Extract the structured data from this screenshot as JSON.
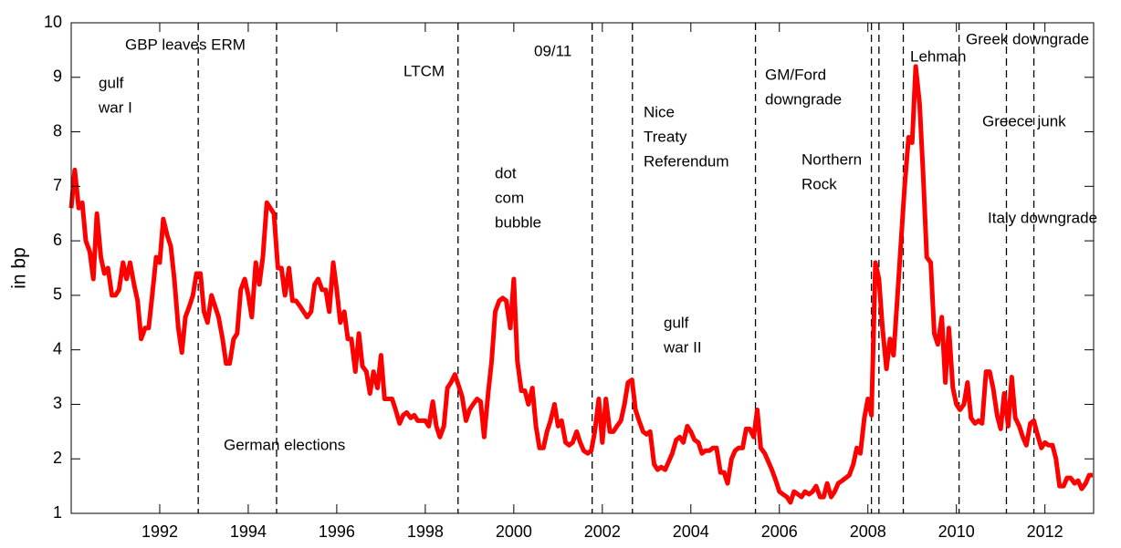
{
  "chart_data": {
    "type": "line",
    "ylabel": "in bp",
    "xlim": [
      1990,
      2013.1
    ],
    "ylim": [
      1,
      10
    ],
    "xticks": [
      1992,
      1994,
      1996,
      1998,
      2000,
      2002,
      2004,
      2006,
      2008,
      2010,
      2012
    ],
    "yticks": [
      1,
      2,
      3,
      4,
      5,
      6,
      7,
      8,
      9,
      10
    ],
    "color": "#ff0000",
    "event_lines": [
      1992.87,
      1994.64,
      1998.74,
      2001.77,
      2002.68,
      2005.46,
      2008.08,
      2008.25,
      2008.8,
      2010.06,
      2011.13,
      2011.75
    ],
    "annotations": [
      [
        "gulf",
        "war I"
      ],
      [
        "GBP leaves ERM"
      ],
      [
        "German elections"
      ],
      [
        "LTCM"
      ],
      [
        "09/11"
      ],
      [
        "dot",
        "com",
        "bubble"
      ],
      [
        "Nice",
        "Treaty",
        "Referendum"
      ],
      [
        "gulf",
        "war II"
      ],
      [
        "GM/Ford",
        "downgrade"
      ],
      [
        "Northern",
        "Rock"
      ],
      [
        "Lehman"
      ],
      [
        "Greek downgrade"
      ],
      [
        "Greece junk"
      ],
      [
        "Italy downgrade"
      ]
    ],
    "x": [
      1990,
      1990.08,
      1990.17,
      1990.25,
      1990.33,
      1990.42,
      1990.5,
      1990.58,
      1990.67,
      1990.75,
      1990.83,
      1990.92,
      1991,
      1991.08,
      1991.17,
      1991.25,
      1991.33,
      1991.42,
      1991.5,
      1991.58,
      1991.67,
      1991.75,
      1991.83,
      1991.92,
      1992,
      1992.08,
      1992.17,
      1992.25,
      1992.33,
      1992.42,
      1992.5,
      1992.58,
      1992.67,
      1992.75,
      1992.83,
      1992.92,
      1993,
      1993.08,
      1993.17,
      1993.25,
      1993.33,
      1993.42,
      1993.5,
      1993.58,
      1993.67,
      1993.75,
      1993.83,
      1993.92,
      1994,
      1994.08,
      1994.17,
      1994.25,
      1994.33,
      1994.42,
      1994.5,
      1994.58,
      1994.67,
      1994.75,
      1994.83,
      1994.92,
      1995,
      1995.08,
      1995.17,
      1995.25,
      1995.33,
      1995.42,
      1995.5,
      1995.58,
      1995.67,
      1995.75,
      1995.83,
      1995.92,
      1996,
      1996.08,
      1996.17,
      1996.25,
      1996.33,
      1996.42,
      1996.5,
      1996.58,
      1996.67,
      1996.75,
      1996.83,
      1996.92,
      1997,
      1997.08,
      1997.17,
      1997.25,
      1997.33,
      1997.42,
      1997.5,
      1997.58,
      1997.67,
      1997.75,
      1997.83,
      1997.92,
      1998,
      1998.08,
      1998.17,
      1998.25,
      1998.33,
      1998.42,
      1998.5,
      1998.58,
      1998.67,
      1998.75,
      1998.83,
      1998.92,
      1999,
      1999.08,
      1999.17,
      1999.25,
      1999.33,
      1999.42,
      1999.5,
      1999.58,
      1999.67,
      1999.75,
      1999.83,
      1999.92,
      2000,
      2000.08,
      2000.17,
      2000.25,
      2000.33,
      2000.42,
      2000.5,
      2000.58,
      2000.67,
      2000.75,
      2000.83,
      2000.92,
      2001,
      2001.08,
      2001.17,
      2001.25,
      2001.33,
      2001.42,
      2001.5,
      2001.58,
      2001.67,
      2001.75,
      2001.83,
      2001.92,
      2002,
      2002.08,
      2002.17,
      2002.25,
      2002.33,
      2002.42,
      2002.5,
      2002.58,
      2002.67,
      2002.75,
      2002.83,
      2002.92,
      2003,
      2003.08,
      2003.17,
      2003.25,
      2003.33,
      2003.42,
      2003.5,
      2003.58,
      2003.67,
      2003.75,
      2003.83,
      2003.92,
      2004,
      2004.08,
      2004.17,
      2004.25,
      2004.33,
      2004.42,
      2004.5,
      2004.58,
      2004.67,
      2004.75,
      2004.83,
      2004.92,
      2005,
      2005.08,
      2005.17,
      2005.25,
      2005.33,
      2005.42,
      2005.5,
      2005.58,
      2005.67,
      2005.75,
      2005.83,
      2005.92,
      2006,
      2006.08,
      2006.17,
      2006.25,
      2006.33,
      2006.42,
      2006.5,
      2006.58,
      2006.67,
      2006.75,
      2006.83,
      2006.92,
      2007,
      2007.08,
      2007.17,
      2007.25,
      2007.33,
      2007.42,
      2007.5,
      2007.58,
      2007.67,
      2007.75,
      2007.83,
      2007.92,
      2008,
      2008.08,
      2008.17,
      2008.25,
      2008.33,
      2008.42,
      2008.5,
      2008.58,
      2008.67,
      2008.75,
      2008.83,
      2008.92,
      2009,
      2009.08,
      2009.17,
      2009.25,
      2009.33,
      2009.42,
      2009.5,
      2009.58,
      2009.67,
      2009.75,
      2009.83,
      2009.92,
      2010,
      2010.08,
      2010.17,
      2010.25,
      2010.33,
      2010.42,
      2010.5,
      2010.58,
      2010.67,
      2010.75,
      2010.83,
      2010.92,
      2011,
      2011.08,
      2011.17,
      2011.25,
      2011.33,
      2011.42,
      2011.5,
      2011.58,
      2011.67,
      2011.75,
      2011.83,
      2011.92,
      2012,
      2012.08,
      2012.17,
      2012.25,
      2012.33,
      2012.42,
      2012.5,
      2012.58,
      2012.67,
      2012.75,
      2012.83,
      2012.92,
      2013,
      2013.08
    ],
    "values": [
      6.6,
      7.3,
      6.6,
      6.7,
      6.0,
      5.8,
      5.3,
      6.5,
      5.7,
      5.4,
      5.5,
      5.0,
      5.0,
      5.1,
      5.6,
      5.3,
      5.6,
      5.2,
      4.9,
      4.2,
      4.4,
      4.4,
      5.0,
      5.7,
      5.6,
      6.4,
      6.1,
      5.9,
      5.3,
      4.4,
      3.95,
      4.6,
      4.8,
      5.0,
      5.4,
      5.4,
      4.7,
      4.5,
      5.0,
      4.8,
      4.6,
      4.2,
      3.75,
      3.75,
      4.2,
      4.3,
      5.1,
      5.3,
      5.0,
      4.6,
      5.6,
      5.2,
      5.7,
      6.7,
      6.6,
      6.5,
      5.5,
      5.5,
      5.0,
      5.5,
      4.9,
      4.9,
      4.8,
      4.7,
      4.6,
      4.7,
      5.2,
      5.3,
      5.1,
      5.1,
      4.7,
      5.6,
      5.1,
      4.5,
      4.7,
      4.2,
      4.2,
      3.6,
      4.3,
      3.7,
      3.6,
      3.2,
      3.6,
      3.3,
      3.9,
      3.1,
      3.1,
      3.1,
      2.9,
      2.65,
      2.8,
      2.85,
      2.75,
      2.8,
      2.7,
      2.7,
      2.7,
      2.6,
      3.05,
      2.6,
      2.4,
      2.6,
      3.3,
      3.4,
      3.55,
      3.35,
      3.15,
      2.7,
      2.9,
      3.0,
      3.1,
      3.05,
      2.4,
      3.2,
      3.8,
      4.7,
      4.9,
      4.95,
      4.9,
      4.4,
      5.3,
      3.8,
      3.25,
      3.25,
      3.0,
      3.3,
      2.6,
      2.2,
      2.2,
      2.5,
      2.7,
      3.0,
      2.6,
      2.7,
      2.3,
      2.25,
      2.3,
      2.5,
      2.3,
      2.15,
      2.1,
      2.15,
      2.5,
      3.1,
      2.3,
      3.1,
      2.5,
      2.5,
      2.6,
      2.7,
      3.0,
      3.4,
      3.45,
      2.9,
      2.7,
      2.5,
      2.45,
      2.5,
      1.9,
      1.8,
      1.85,
      1.8,
      1.95,
      2.1,
      2.35,
      2.4,
      2.3,
      2.6,
      2.5,
      2.35,
      2.3,
      2.1,
      2.15,
      2.15,
      2.2,
      2.2,
      1.75,
      1.75,
      1.55,
      2.0,
      2.15,
      2.2,
      2.2,
      2.55,
      2.55,
      2.4,
      2.9,
      2.2,
      2.1,
      1.95,
      1.8,
      1.6,
      1.4,
      1.35,
      1.3,
      1.2,
      1.4,
      1.35,
      1.3,
      1.4,
      1.35,
      1.4,
      1.5,
      1.3,
      1.3,
      1.55,
      1.3,
      1.4,
      1.55,
      1.6,
      1.65,
      1.7,
      1.9,
      2.2,
      2.1,
      2.75,
      3.1,
      2.8,
      5.6,
      5.3,
      4.4,
      3.65,
      4.2,
      3.9,
      5.0,
      6.0,
      7.0,
      7.9,
      7.8,
      9.2,
      8.5,
      7.2,
      5.7,
      5.6,
      4.3,
      4.1,
      4.6,
      3.4,
      4.4,
      3.3,
      3.0,
      2.9,
      3.0,
      3.4,
      2.75,
      2.65,
      2.7,
      2.65,
      3.6,
      3.6,
      3.3,
      2.8,
      2.55,
      3.2,
      2.6,
      3.5,
      2.75,
      2.6,
      2.4,
      2.25,
      2.65,
      2.7,
      2.45,
      2.2,
      2.3,
      2.25,
      2.25,
      2.0,
      1.5,
      1.5,
      1.65,
      1.65,
      1.55,
      1.6,
      1.45,
      1.55,
      1.7,
      1.7
    ]
  }
}
